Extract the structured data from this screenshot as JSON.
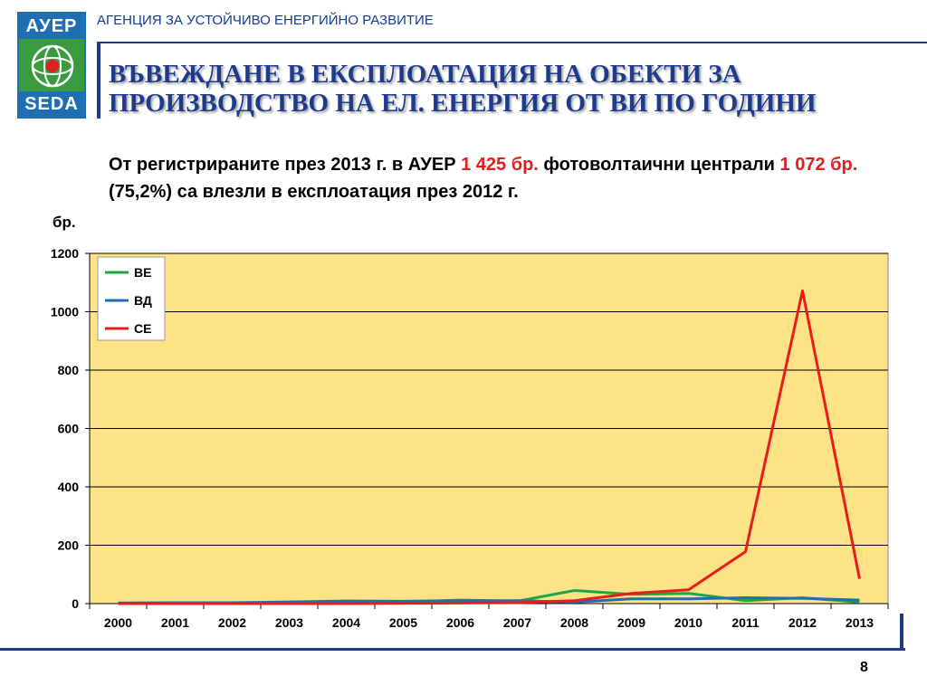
{
  "header": {
    "logo_top": "АУЕР",
    "logo_bottom": "SEDA",
    "agency": "АГЕНЦИЯ ЗА УСТОЙЧИВО ЕНЕРГИЙНО РАЗВИТИЕ",
    "title": "ВЪВЕЖДАНЕ В ЕКСПЛОАТАЦИЯ НА ОБЕКТИ ЗА ПРОИЗВОДСТВО НА ЕЛ. ЕНЕРГИЯ ОТ ВИ ПО ГОДИНИ"
  },
  "subtitle": {
    "part1": "От регистрираните през 2013 г. в АУЕР ",
    "highlight1": "1 425 бр.",
    "part2": " фотоволтаични централи ",
    "highlight2": "1 072 бр.",
    "part3": " (75,2%) са влезли в експлоатация през 2012 г."
  },
  "chart_data": {
    "type": "line",
    "ylabel": "бр.",
    "xlabel": "",
    "title": "",
    "ylim": [
      0,
      1200
    ],
    "yticks": [
      0,
      200,
      400,
      600,
      800,
      1000,
      1200
    ],
    "categories": [
      "2000",
      "2001",
      "2002",
      "2003",
      "2004",
      "2005",
      "2006",
      "2007",
      "2008",
      "2009",
      "2010",
      "2011",
      "2012",
      "2013"
    ],
    "series": [
      {
        "name": "ВЕ",
        "color": "#1fa64a",
        "values": [
          2,
          2,
          2,
          4,
          6,
          6,
          12,
          8,
          45,
          32,
          35,
          10,
          20,
          5
        ]
      },
      {
        "name": "ВД",
        "color": "#1f6fb2",
        "values": [
          2,
          3,
          3,
          6,
          9,
          8,
          10,
          10,
          5,
          16,
          16,
          20,
          18,
          12
        ]
      },
      {
        "name": "СЕ",
        "color": "#e81c1c",
        "values": [
          0,
          0,
          0,
          0,
          0,
          1,
          2,
          3,
          10,
          35,
          47,
          178,
          1072,
          85
        ]
      }
    ],
    "plot_background": "#fde386",
    "grid": true,
    "legend_position": "top-left"
  },
  "page_number": "8"
}
